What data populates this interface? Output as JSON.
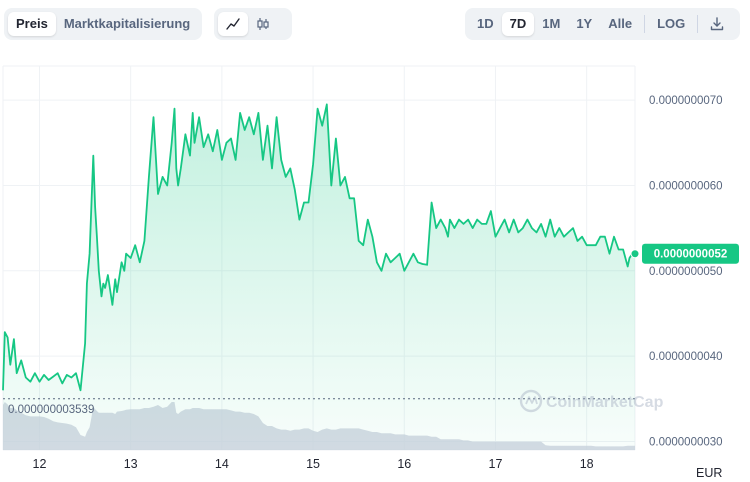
{
  "toolbar": {
    "view_tabs": [
      {
        "label": "Preis",
        "active": true
      },
      {
        "label": "Marktkapitalisierung",
        "active": false
      }
    ],
    "chart_type_icons": [
      {
        "icon": "line-chart-icon",
        "active": true
      },
      {
        "icon": "candlestick-icon",
        "active": false
      }
    ],
    "ranges": [
      {
        "label": "1D",
        "active": false
      },
      {
        "label": "7D",
        "active": true
      },
      {
        "label": "1M",
        "active": false
      },
      {
        "label": "1Y",
        "active": false
      },
      {
        "label": "Alle",
        "active": false
      }
    ],
    "log_label": "LOG",
    "download_icon": "download-icon"
  },
  "colors": {
    "line": "#16c784",
    "area_top": "#16c784",
    "volume": "#c9cfdc",
    "baseline": "#58667e",
    "badge": "#16c784"
  },
  "chart_data": {
    "type": "line",
    "title": "",
    "xlabel": "",
    "ylabel": "",
    "currency": "EUR",
    "x_ticks": [
      "12",
      "13",
      "14",
      "15",
      "16",
      "17",
      "18"
    ],
    "y_ticks": [
      "0.0000000030",
      "0.0000000040",
      "0.0000000050",
      "0.0000000060",
      "0.0000000070"
    ],
    "y_range": [
      2.9e-09,
      7.4e-09
    ],
    "x_range": [
      11.6,
      18.53
    ],
    "baseline_value": 3.5e-09,
    "baseline_label": "0.000000003539",
    "current_price_label": "0.0000000052",
    "watermark": "CoinMarketCap",
    "series": [
      {
        "x": [
          11.6,
          11.62,
          11.65,
          11.68,
          11.72,
          11.75,
          11.8,
          11.85,
          11.9,
          11.95,
          12.0,
          12.05,
          12.1,
          12.15,
          12.2,
          12.25,
          12.3,
          12.35,
          12.4,
          12.45,
          12.5,
          12.52,
          12.55,
          12.57,
          12.59,
          12.6,
          12.61,
          12.63,
          12.65,
          12.68,
          12.7,
          12.72,
          12.75,
          12.8,
          12.83,
          12.85,
          12.9,
          12.93,
          12.95,
          13.0,
          13.05,
          13.1,
          13.15,
          13.2,
          13.25,
          13.3,
          13.35,
          13.4,
          13.45,
          13.48,
          13.5,
          13.52,
          13.55,
          13.6,
          13.65,
          13.68,
          13.7,
          13.75,
          13.8,
          13.85,
          13.9,
          13.95,
          14.0,
          14.05,
          14.1,
          14.15,
          14.2,
          14.25,
          14.3,
          14.35,
          14.4,
          14.45,
          14.5,
          14.55,
          14.6,
          14.65,
          14.7,
          14.75,
          14.8,
          14.85,
          14.9,
          14.95,
          15.0,
          15.05,
          15.1,
          15.15,
          15.2,
          15.25,
          15.3,
          15.35,
          15.4,
          15.45,
          15.5,
          15.55,
          15.6,
          15.65,
          15.7,
          15.75,
          15.8,
          15.85,
          15.9,
          15.95,
          16.0,
          16.05,
          16.1,
          16.15,
          16.2,
          16.25,
          16.3,
          16.35,
          16.4,
          16.45,
          16.48,
          16.5,
          16.55,
          16.6,
          16.65,
          16.7,
          16.75,
          16.8,
          16.85,
          16.9,
          16.95,
          17.0,
          17.05,
          17.1,
          17.15,
          17.2,
          17.25,
          17.3,
          17.35,
          17.4,
          17.45,
          17.5,
          17.55,
          17.6,
          17.65,
          17.7,
          17.75,
          17.8,
          17.85,
          17.9,
          17.95,
          18.0,
          18.05,
          18.1,
          18.15,
          18.2,
          18.25,
          18.3,
          18.35,
          18.4,
          18.45,
          18.47,
          18.5,
          18.53
        ],
        "values": [
          3.6,
          4.28,
          4.22,
          3.9,
          4.2,
          3.8,
          3.95,
          3.75,
          3.7,
          3.8,
          3.7,
          3.78,
          3.72,
          3.76,
          3.8,
          3.68,
          3.78,
          3.75,
          3.8,
          3.6,
          4.15,
          4.85,
          5.2,
          5.8,
          6.35,
          6.05,
          5.75,
          5.4,
          5.0,
          4.7,
          4.85,
          4.8,
          4.95,
          4.6,
          4.9,
          4.75,
          5.1,
          5.0,
          5.2,
          5.15,
          5.3,
          5.1,
          5.35,
          6.1,
          6.8,
          5.9,
          6.1,
          6.0,
          6.5,
          6.9,
          6.2,
          6.0,
          6.2,
          6.6,
          6.35,
          6.85,
          6.5,
          6.8,
          6.45,
          6.6,
          6.4,
          6.65,
          6.3,
          6.5,
          6.55,
          6.3,
          6.85,
          6.65,
          6.8,
          6.6,
          6.85,
          6.3,
          6.7,
          6.2,
          6.8,
          6.3,
          6.1,
          6.2,
          5.95,
          5.6,
          5.8,
          5.8,
          6.25,
          6.9,
          6.7,
          6.95,
          6.0,
          6.55,
          6.0,
          6.1,
          5.85,
          5.85,
          5.35,
          5.3,
          5.6,
          5.4,
          5.1,
          5.0,
          5.2,
          5.1,
          5.15,
          5.2,
          5.0,
          5.1,
          5.2,
          5.1,
          5.08,
          5.07,
          5.8,
          5.5,
          5.6,
          5.5,
          5.4,
          5.6,
          5.5,
          5.6,
          5.55,
          5.6,
          5.5,
          5.6,
          5.55,
          5.55,
          5.7,
          5.4,
          5.5,
          5.6,
          5.45,
          5.6,
          5.45,
          5.5,
          5.6,
          5.5,
          5.45,
          5.55,
          5.4,
          5.6,
          5.4,
          5.5,
          5.4,
          5.45,
          5.5,
          5.35,
          5.4,
          5.3,
          5.3,
          5.3,
          5.4,
          5.4,
          5.2,
          5.4,
          5.25,
          5.25,
          5.05,
          5.15,
          5.2,
          5.2
        ]
      }
    ],
    "volume_relative": [
      0.75,
      0.8,
      0.76,
      0.7,
      0.7,
      0.66,
      0.62,
      0.58,
      0.56,
      0.56,
      0.56,
      0.55,
      0.52,
      0.48,
      0.46,
      0.45,
      0.44,
      0.42,
      0.38,
      0.25,
      0.22,
      0.3,
      0.38,
      0.55,
      0.72,
      0.7,
      0.68,
      0.65,
      0.62,
      0.62,
      0.62,
      0.62,
      0.62,
      0.62,
      0.6,
      0.64,
      0.65,
      0.66,
      0.67,
      0.68,
      0.68,
      0.68,
      0.7,
      0.7,
      0.72,
      0.75,
      0.7,
      0.72,
      0.8,
      0.8,
      0.62,
      0.6,
      0.64,
      0.68,
      0.68,
      0.7,
      0.7,
      0.7,
      0.68,
      0.68,
      0.68,
      0.68,
      0.68,
      0.68,
      0.66,
      0.64,
      0.64,
      0.62,
      0.62,
      0.6,
      0.56,
      0.45,
      0.4,
      0.4,
      0.36,
      0.34,
      0.34,
      0.32,
      0.34,
      0.34,
      0.36,
      0.36,
      0.32,
      0.3,
      0.34,
      0.36,
      0.34,
      0.34,
      0.36,
      0.36,
      0.36,
      0.36,
      0.36,
      0.34,
      0.32,
      0.3,
      0.3,
      0.28,
      0.28,
      0.28,
      0.26,
      0.26,
      0.26,
      0.24,
      0.24,
      0.24,
      0.24,
      0.24,
      0.22,
      0.22,
      0.18,
      0.18,
      0.18,
      0.18,
      0.18,
      0.18,
      0.16,
      0.16,
      0.14,
      0.14,
      0.14,
      0.14,
      0.14,
      0.14,
      0.14,
      0.14,
      0.14,
      0.14,
      0.14,
      0.14,
      0.14,
      0.14,
      0.14,
      0.14,
      0.08,
      0.07,
      0.07,
      0.07,
      0.07,
      0.07,
      0.07,
      0.07,
      0.07,
      0.07,
      0.07,
      0.06,
      0.06,
      0.06,
      0.06,
      0.06,
      0.06,
      0.06,
      0.07,
      0.07,
      0.07,
      0.07
    ]
  }
}
